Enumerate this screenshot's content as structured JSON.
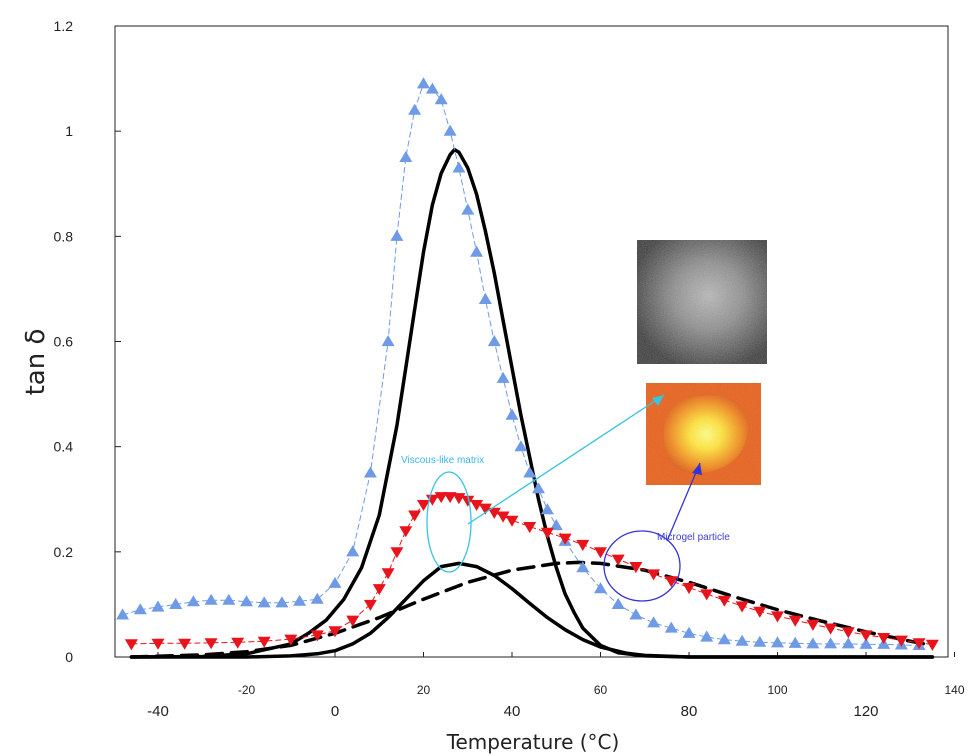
{
  "chart_data": {
    "type": "line",
    "xlabel": "Temperature (°C)",
    "ylabel": "tan δ",
    "xlim": [
      -48,
      140
    ],
    "ylim": [
      0,
      1.2
    ],
    "y_ticks": [
      "0",
      "0.2",
      "0.4",
      "0.6",
      "0.8",
      "1",
      "1.2"
    ],
    "x_ticks_lower": [
      "-40",
      "0",
      "40",
      "80",
      "120"
    ],
    "x_ticks_upper": [
      "-20",
      "20",
      "60",
      "100",
      "140"
    ],
    "grid": false,
    "legend": "none",
    "series": [
      {
        "marker": "triangle-up",
        "color": "#6f9be6",
        "x": [
          -48,
          -44,
          -40,
          -36,
          -32,
          -28,
          -24,
          -20,
          -16,
          -12,
          -8,
          -4,
          0,
          4,
          8,
          12,
          14,
          16,
          18,
          20,
          22,
          24,
          26,
          28,
          30,
          32,
          34,
          36,
          38,
          40,
          42,
          44,
          46,
          48,
          50,
          52,
          56,
          60,
          64,
          68,
          72,
          76,
          80,
          84,
          88,
          92,
          96,
          100,
          104,
          108,
          112,
          116,
          120,
          124,
          128,
          132
        ],
        "y": [
          0.08,
          0.09,
          0.095,
          0.1,
          0.105,
          0.108,
          0.108,
          0.105,
          0.103,
          0.103,
          0.106,
          0.11,
          0.14,
          0.2,
          0.35,
          0.6,
          0.8,
          0.95,
          1.04,
          1.09,
          1.08,
          1.06,
          1.0,
          0.93,
          0.85,
          0.77,
          0.68,
          0.6,
          0.53,
          0.46,
          0.4,
          0.35,
          0.32,
          0.28,
          0.25,
          0.22,
          0.17,
          0.13,
          0.1,
          0.08,
          0.065,
          0.055,
          0.045,
          0.038,
          0.033,
          0.03,
          0.028,
          0.027,
          0.026,
          0.025,
          0.025,
          0.025,
          0.024,
          0.024,
          0.023,
          0.022
        ]
      },
      {
        "marker": "triangle-down",
        "color": "#e8141b",
        "x": [
          -46,
          -40,
          -34,
          -28,
          -22,
          -16,
          -10,
          -4,
          0,
          4,
          8,
          10,
          12,
          14,
          16,
          18,
          20,
          22,
          24,
          26,
          28,
          30,
          32,
          34,
          36,
          38,
          40,
          44,
          48,
          52,
          56,
          60,
          64,
          68,
          72,
          76,
          80,
          84,
          88,
          92,
          96,
          100,
          104,
          108,
          112,
          116,
          120,
          124,
          128,
          132,
          135
        ],
        "y": [
          0.025,
          0.026,
          0.026,
          0.027,
          0.028,
          0.03,
          0.034,
          0.042,
          0.05,
          0.07,
          0.1,
          0.13,
          0.16,
          0.2,
          0.24,
          0.27,
          0.29,
          0.3,
          0.305,
          0.305,
          0.303,
          0.298,
          0.29,
          0.283,
          0.275,
          0.268,
          0.26,
          0.248,
          0.237,
          0.226,
          0.214,
          0.2,
          0.186,
          0.172,
          0.158,
          0.145,
          0.132,
          0.12,
          0.108,
          0.097,
          0.087,
          0.078,
          0.07,
          0.062,
          0.055,
          0.048,
          0.042,
          0.037,
          0.032,
          0.027,
          0.024
        ]
      },
      {
        "style": "solid",
        "color": "#000000",
        "x": [
          -46,
          -30,
          -20,
          -10,
          -6,
          -2,
          2,
          6,
          10,
          14,
          16,
          18,
          20,
          22,
          24,
          26,
          27,
          28,
          30,
          32,
          34,
          36,
          38,
          40,
          42,
          44,
          46,
          48,
          50,
          52,
          54,
          56,
          60,
          64,
          70,
          80,
          100,
          135
        ],
        "y": [
          0,
          0.001,
          0.006,
          0.025,
          0.045,
          0.07,
          0.11,
          0.17,
          0.27,
          0.44,
          0.55,
          0.66,
          0.77,
          0.86,
          0.92,
          0.955,
          0.965,
          0.96,
          0.93,
          0.88,
          0.81,
          0.73,
          0.64,
          0.55,
          0.46,
          0.38,
          0.3,
          0.23,
          0.17,
          0.12,
          0.085,
          0.055,
          0.022,
          0.008,
          0.002,
          0,
          0,
          0
        ]
      },
      {
        "style": "solid",
        "color": "#000000",
        "x": [
          -46,
          -20,
          -10,
          -4,
          0,
          4,
          8,
          12,
          16,
          20,
          24,
          28,
          32,
          36,
          40,
          44,
          48,
          52,
          56,
          60,
          66,
          70,
          80,
          135
        ],
        "y": [
          0,
          0,
          0.002,
          0.006,
          0.012,
          0.025,
          0.045,
          0.075,
          0.11,
          0.145,
          0.172,
          0.178,
          0.172,
          0.155,
          0.13,
          0.102,
          0.075,
          0.052,
          0.033,
          0.019,
          0.007,
          0.003,
          0,
          0
        ]
      },
      {
        "style": "dashed",
        "color": "#000000",
        "x": [
          -46,
          -30,
          -20,
          -10,
          0,
          10,
          20,
          30,
          40,
          50,
          55,
          60,
          70,
          80,
          90,
          100,
          110,
          120,
          130,
          135
        ],
        "y": [
          0,
          0.004,
          0.01,
          0.022,
          0.045,
          0.075,
          0.11,
          0.142,
          0.165,
          0.178,
          0.18,
          0.178,
          0.165,
          0.142,
          0.115,
          0.09,
          0.068,
          0.048,
          0.03,
          0.022
        ]
      }
    ],
    "annotations": [
      {
        "text": "Viscous-like matrix",
        "color": "#39b7e6"
      },
      {
        "text": "Microgel particle",
        "color": "#3d3dd8"
      }
    ]
  }
}
